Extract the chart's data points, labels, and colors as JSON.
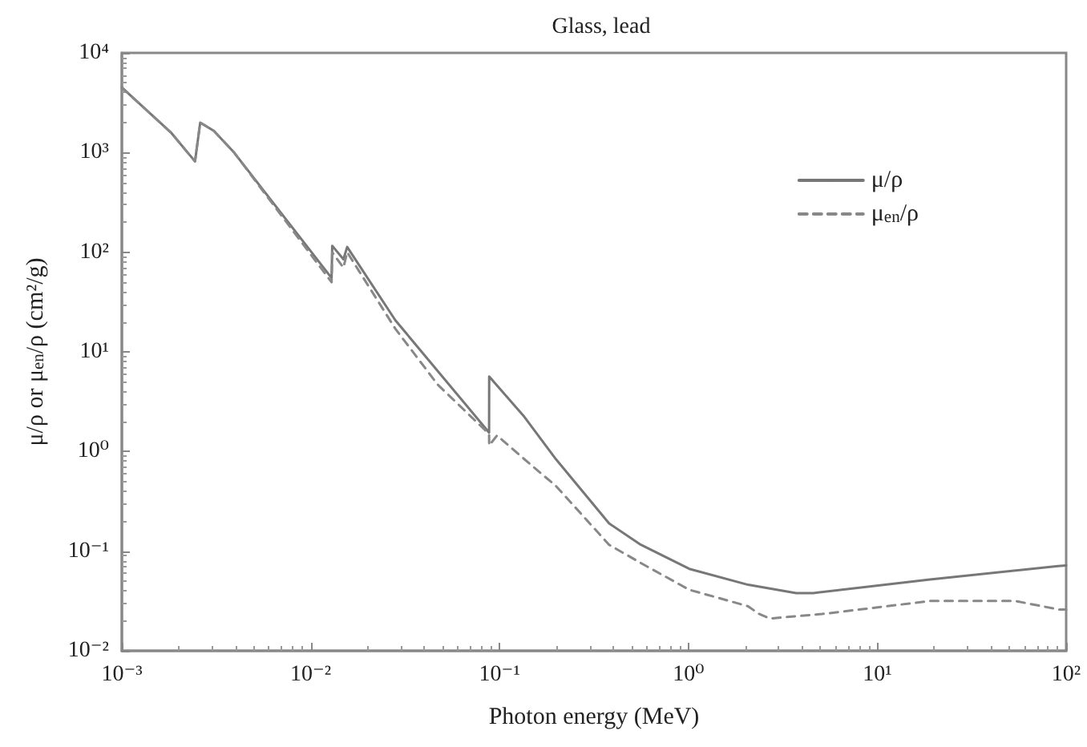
{
  "chart_data": {
    "type": "line",
    "title": "Glass, lead",
    "xlabel": "Photon energy (MeV)",
    "ylabel": "μ/ρ or μ$_{en}$/ρ (cm²/g)",
    "log": "xy",
    "grid": false,
    "legend": "top right",
    "marker": "none",
    "xlim": [
      0.001,
      100
    ],
    "ylim": [
      0.01,
      10000
    ],
    "xticks": [
      {
        "value": 0.001,
        "label": "10⁻³"
      },
      {
        "value": 0.01,
        "label": "10⁻²"
      },
      {
        "value": 0.1,
        "label": "10⁻¹"
      },
      {
        "value": 1,
        "label": "10⁰"
      },
      {
        "value": 10,
        "label": "10¹"
      },
      {
        "value": 100,
        "label": "10²"
      }
    ],
    "yticks": [
      {
        "value": 0.01,
        "label": "10⁻²"
      },
      {
        "value": 0.1,
        "label": "10⁻¹"
      },
      {
        "value": 1,
        "label": "10⁰"
      },
      {
        "value": 10,
        "label": "10¹"
      },
      {
        "value": 100,
        "label": "10²"
      },
      {
        "value": 1000,
        "label": "10³"
      },
      {
        "value": 10000,
        "label": "10⁴"
      }
    ],
    "series": [
      {
        "name": "μ/ρ",
        "color": "#777777",
        "line_style": "solid",
        "x": [
          0.001,
          0.00183,
          0.00244,
          0.0026,
          0.00307,
          0.00393,
          0.0129,
          0.013,
          0.0149,
          0.0156,
          0.0281,
          0.088,
          0.0881,
          0.135,
          0.199,
          0.38,
          0.56,
          1.01,
          2.07,
          3.72,
          4.6,
          19,
          90.8,
          100
        ],
        "values": [
          4500,
          1570,
          815,
          2000,
          1650,
          1000,
          55,
          116,
          85,
          113,
          20.7,
          1.55,
          5.65,
          2.24,
          0.835,
          0.19,
          0.116,
          0.0665,
          0.046,
          0.038,
          0.038,
          0.052,
          0.071,
          0.072
        ]
      },
      {
        "name": "μ$_{en}$/ρ",
        "color": "#888888",
        "line_style": "dashed",
        "x": [
          0.001,
          0.00183,
          0.00244,
          0.0026,
          0.00307,
          0.00393,
          0.0129,
          0.013,
          0.0149,
          0.0156,
          0.0281,
          0.047,
          0.088,
          0.0881,
          0.097,
          0.135,
          0.199,
          0.38,
          0.56,
          1.01,
          2.07,
          2.36,
          2.7,
          5.1,
          19,
          54,
          91,
          100
        ],
        "values": [
          4500,
          1570,
          815,
          2000,
          1650,
          1000,
          50,
          100,
          70,
          100,
          17,
          4.7,
          1.5,
          1.15,
          1.45,
          0.84,
          0.45,
          0.116,
          0.076,
          0.041,
          0.028,
          0.0235,
          0.0211,
          0.0234,
          0.0316,
          0.0316,
          0.026,
          0.026
        ]
      }
    ]
  }
}
